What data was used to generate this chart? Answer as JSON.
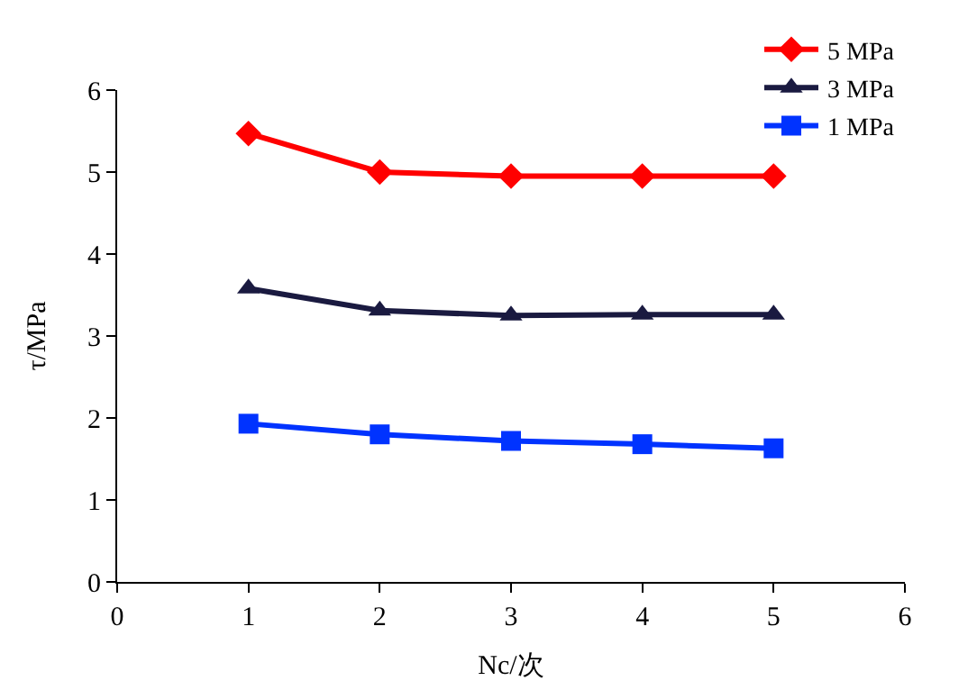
{
  "chart_data": {
    "type": "line",
    "xlabel": "Nc/次",
    "ylabel": "τ/MPa",
    "x": [
      1,
      2,
      3,
      4,
      5
    ],
    "series": [
      {
        "name": "5 MPa",
        "color": "#ff0000",
        "marker": "diamond",
        "values": [
          5.47,
          5.0,
          4.95,
          4.95,
          4.95
        ]
      },
      {
        "name": "3 MPa",
        "color": "#1a1a40",
        "marker": "triangle",
        "values": [
          3.58,
          3.31,
          3.25,
          3.26,
          3.26
        ]
      },
      {
        "name": "1 MPa",
        "color": "#0033ff",
        "marker": "square",
        "values": [
          1.93,
          1.8,
          1.72,
          1.68,
          1.63
        ]
      }
    ],
    "xlim": [
      0,
      6
    ],
    "xticks": [
      0,
      1,
      2,
      3,
      4,
      5,
      6
    ],
    "ylim": [
      0,
      6
    ],
    "yticks": [
      0,
      1,
      2,
      3,
      4,
      5,
      6
    ],
    "grid": false,
    "legend": "top right",
    "line_style": "solid"
  }
}
